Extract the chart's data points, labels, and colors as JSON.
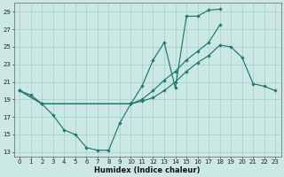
{
  "xlabel": "Humidex (Indice chaleur)",
  "bg_color": "#cce8e4",
  "grid_color": "#aad4cf",
  "line_color": "#1a7a6e",
  "ylim": [
    12.5,
    30.0
  ],
  "yticks": [
    13,
    15,
    17,
    19,
    21,
    23,
    25,
    27,
    29
  ],
  "xlim": [
    -0.5,
    23.5
  ],
  "xticks": [
    0,
    1,
    2,
    3,
    4,
    5,
    6,
    7,
    8,
    9,
    10,
    11,
    12,
    13,
    14,
    15,
    16,
    17,
    18,
    19,
    20,
    21,
    22,
    23
  ],
  "curve1_x": [
    0,
    1,
    2,
    3,
    4,
    5,
    6,
    7,
    8,
    9,
    10,
    11,
    12,
    13,
    14,
    15,
    16,
    17,
    18
  ],
  "curve1_y": [
    20.0,
    19.5,
    18.5,
    17.2,
    15.5,
    15.0,
    13.5,
    13.2,
    13.2,
    16.3,
    18.5,
    20.5,
    23.5,
    25.5,
    20.3,
    28.5,
    28.5,
    29.2,
    29.3
  ],
  "curve2_x": [
    0,
    2,
    10,
    11,
    12,
    13,
    14,
    15,
    16,
    17,
    18
  ],
  "curve2_y": [
    20.0,
    18.5,
    18.5,
    19.0,
    20.0,
    21.2,
    22.2,
    23.5,
    24.5,
    25.5,
    27.5
  ],
  "curve3_x": [
    0,
    2,
    10,
    11,
    12,
    13,
    14,
    15,
    16,
    17,
    18,
    19,
    20,
    21,
    22,
    23
  ],
  "curve3_y": [
    20.0,
    18.5,
    18.5,
    18.8,
    19.2,
    20.0,
    21.0,
    22.2,
    23.2,
    24.0,
    25.2,
    25.0,
    23.8,
    20.8,
    20.5,
    20.0
  ]
}
